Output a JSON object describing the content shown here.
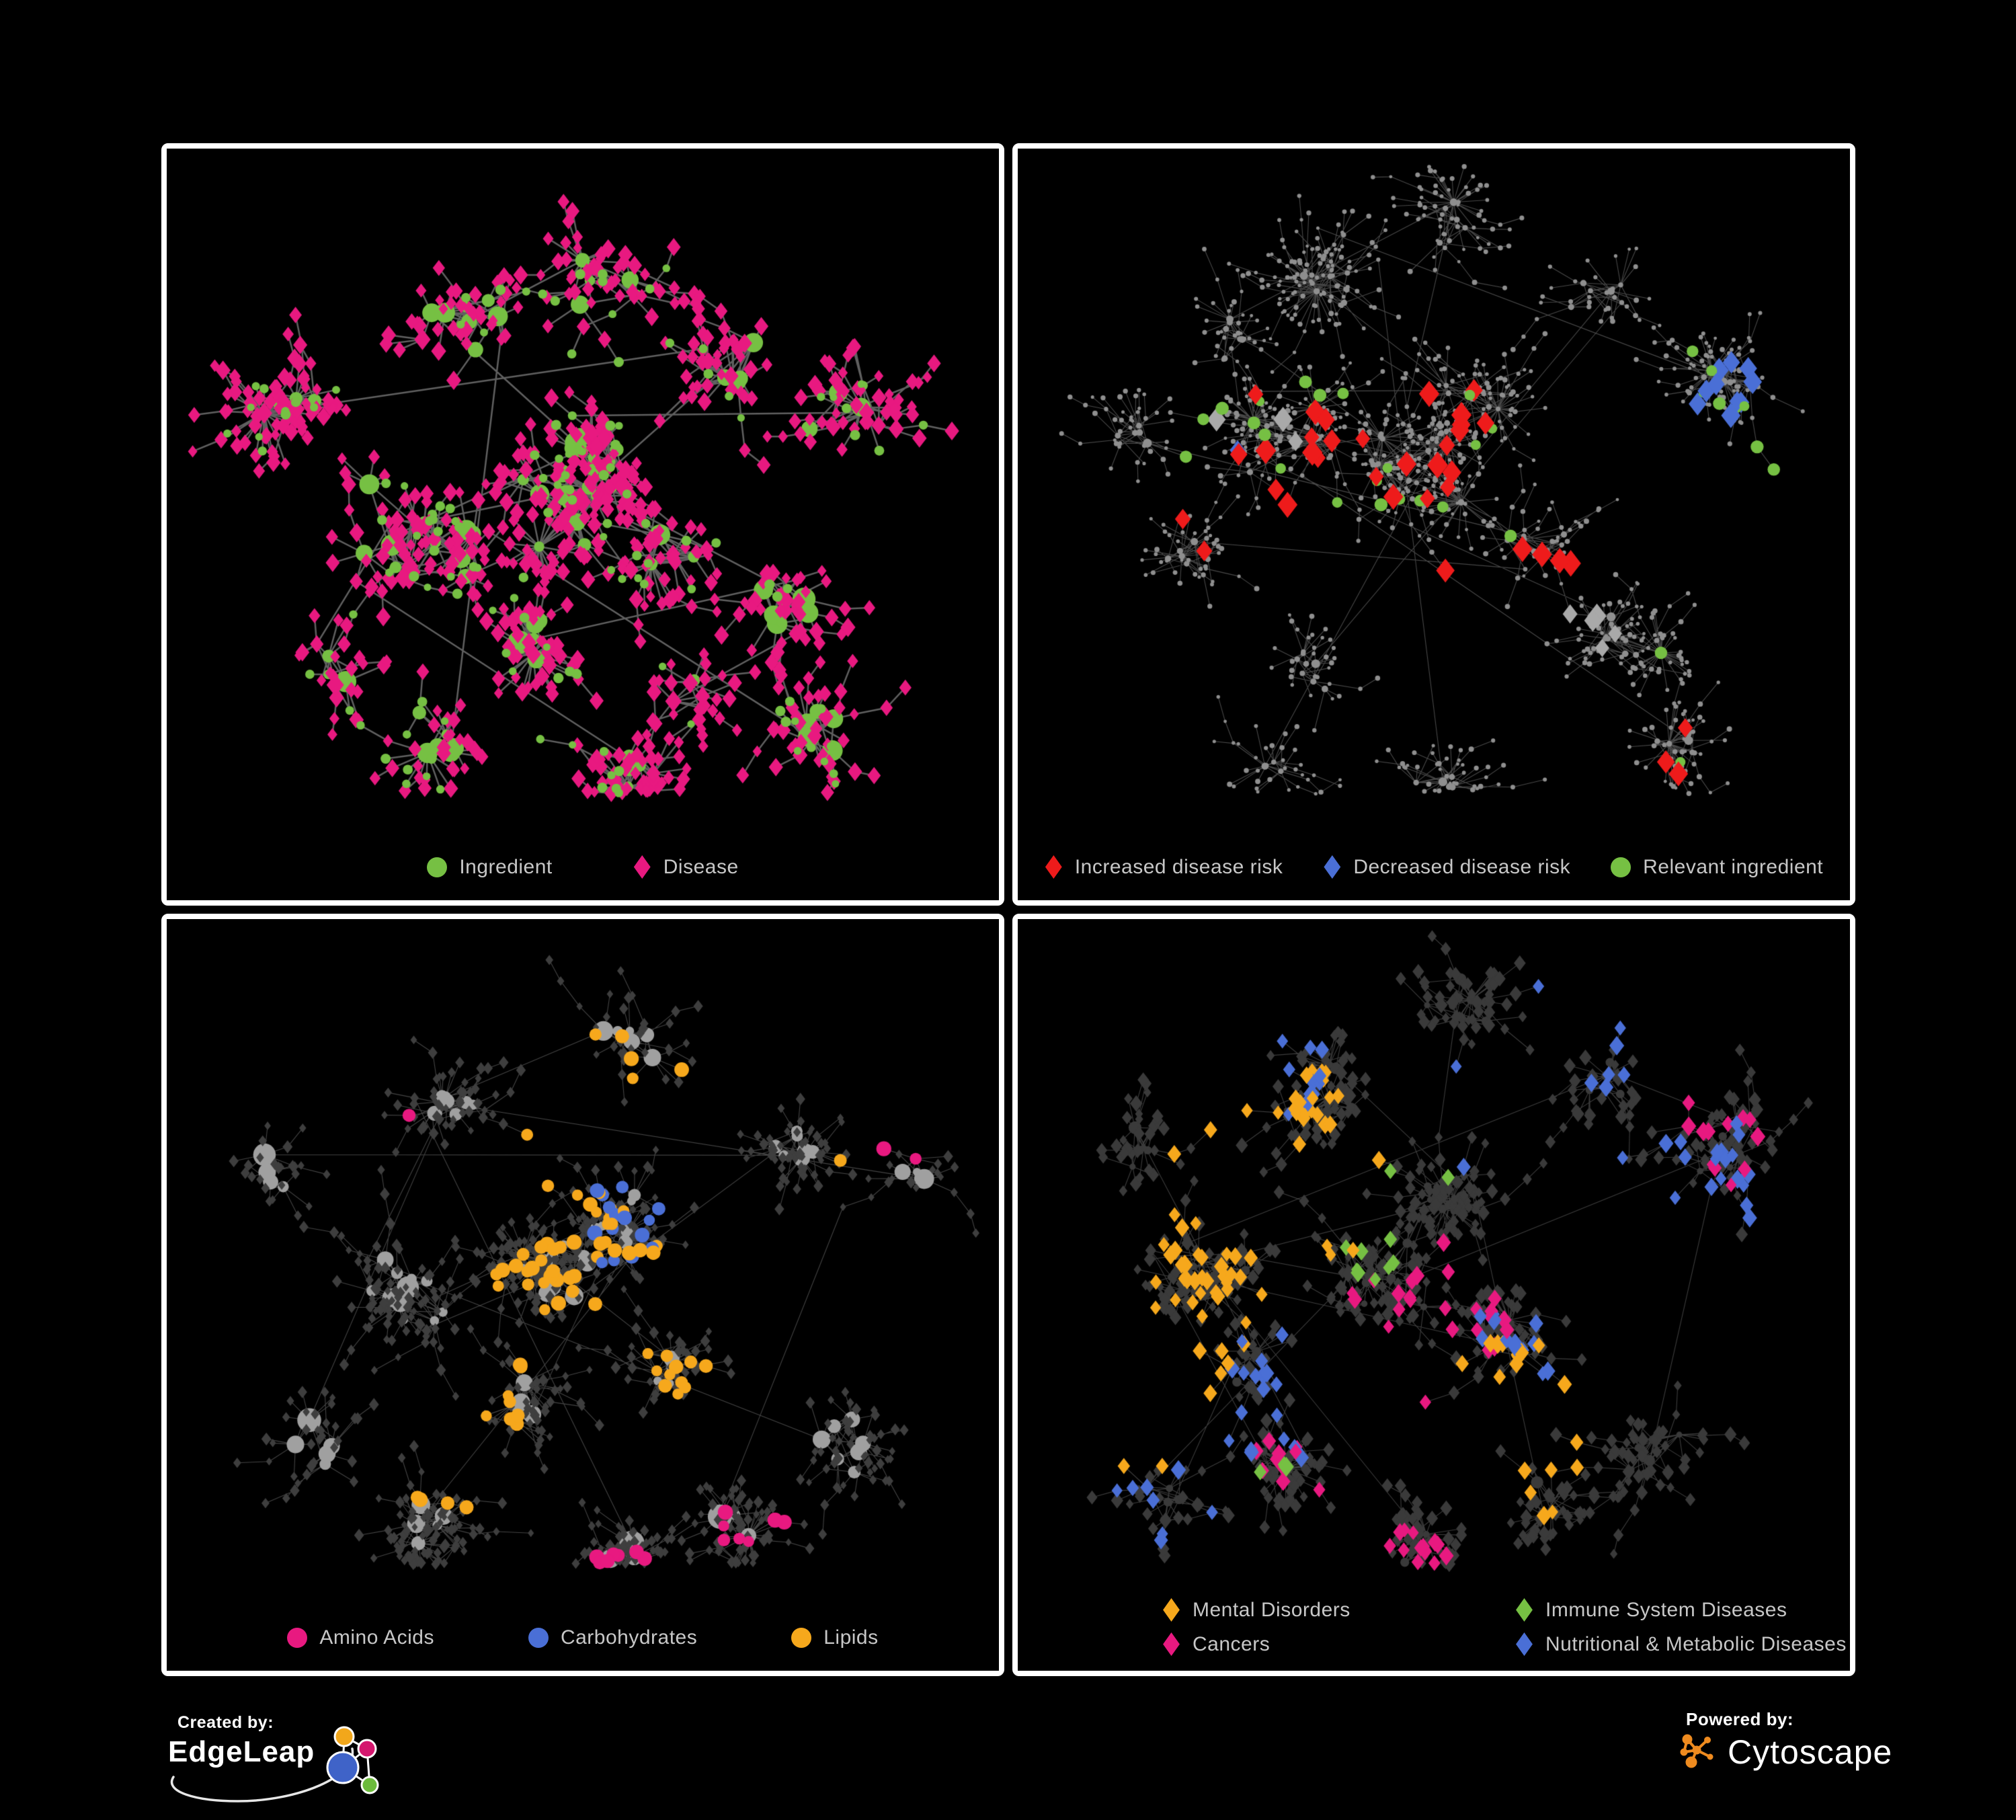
{
  "background": "#000000",
  "palette": {
    "green": "#76C043",
    "magenta": "#E81980",
    "red": "#EE1B1B",
    "blue": "#4A6FD6",
    "amber": "#F6A81C",
    "gray": "#A9A9A9",
    "dark_node": "#3A3A3A",
    "legend_text": "#C7C7C7",
    "panel_border": "#FFFFFF"
  },
  "panels": [
    {
      "name": "ingredient-disease-network",
      "legend": [
        {
          "label": "Ingredient",
          "shape": "circle",
          "color": "#76C043"
        },
        {
          "label": "Disease",
          "shape": "diamond",
          "color": "#E81980"
        }
      ],
      "network": {
        "seed": 7,
        "edge": {
          "color": "#6A6A6A",
          "width": 2.5,
          "alpha": 0.9
        },
        "hub": {
          "shape": "circle",
          "color": "#76C043",
          "sizeMin": 7,
          "sizeMax": 16
        },
        "leaf": {
          "shape": "diamond",
          "color": "#E81980",
          "size": 9
        },
        "leafMin": 2,
        "leafMax": 7,
        "flowerProb": 0.09,
        "chainProb": 0.18,
        "crossProb": 0.35,
        "leafDist": 1.0,
        "clusters": [
          [
            0.3,
            0.52,
            0.1,
            16
          ],
          [
            0.47,
            0.47,
            0.09,
            14
          ],
          [
            0.52,
            0.4,
            0.06,
            10
          ],
          [
            0.6,
            0.55,
            0.05,
            6
          ],
          [
            0.36,
            0.24,
            0.08,
            8
          ],
          [
            0.52,
            0.16,
            0.06,
            6
          ],
          [
            0.68,
            0.3,
            0.06,
            6
          ],
          [
            0.82,
            0.35,
            0.07,
            8
          ],
          [
            0.75,
            0.62,
            0.06,
            6
          ],
          [
            0.8,
            0.78,
            0.06,
            7
          ],
          [
            0.55,
            0.82,
            0.05,
            5
          ],
          [
            0.33,
            0.78,
            0.06,
            6
          ],
          [
            0.2,
            0.7,
            0.05,
            5
          ],
          [
            0.15,
            0.35,
            0.05,
            5
          ],
          [
            0.63,
            0.72,
            0.04,
            4
          ],
          [
            0.44,
            0.66,
            0.05,
            6
          ]
        ],
        "groups": [
          {
            "target": "leaf",
            "shape": "circle",
            "color": "#76C043",
            "size": 6.5,
            "count": 140,
            "centers": null,
            "spread": 1
          },
          {
            "target": "hub",
            "shape": "diamond",
            "color": "#E81980",
            "size": 11,
            "count": 26,
            "centers": null,
            "spread": 1
          }
        ]
      }
    },
    {
      "name": "disease-risk-network",
      "legend": [
        {
          "label": "Increased disease risk",
          "shape": "diamond",
          "color": "#EE1B1B"
        },
        {
          "label": "Decreased disease risk",
          "shape": "diamond",
          "color": "#4A6FD6"
        },
        {
          "label": "Relevant ingredient",
          "shape": "circle",
          "color": "#76C043"
        }
      ],
      "network": {
        "seed": 12,
        "edge": {
          "color": "#666666",
          "width": 1.1,
          "alpha": 0.7
        },
        "hub": {
          "shape": "circle",
          "color": "#8F8F8F",
          "sizeMin": 3.5,
          "sizeMax": 5
        },
        "leaf": {
          "shape": "circle",
          "color": "#8F8F8F",
          "size": 3.2
        },
        "leafMin": 2,
        "leafMax": 8,
        "flowerProb": 0.12,
        "chainProb": 0.2,
        "crossProb": 0.3,
        "leafDist": 1.0,
        "clusters": [
          [
            0.33,
            0.4,
            0.09,
            14
          ],
          [
            0.48,
            0.42,
            0.08,
            14
          ],
          [
            0.56,
            0.33,
            0.05,
            8
          ],
          [
            0.38,
            0.17,
            0.07,
            7
          ],
          [
            0.52,
            0.1,
            0.05,
            5
          ],
          [
            0.25,
            0.25,
            0.06,
            6
          ],
          [
            0.7,
            0.2,
            0.06,
            6
          ],
          [
            0.85,
            0.3,
            0.06,
            7
          ],
          [
            0.62,
            0.52,
            0.06,
            8
          ],
          [
            0.72,
            0.65,
            0.06,
            7
          ],
          [
            0.8,
            0.8,
            0.05,
            6
          ],
          [
            0.5,
            0.85,
            0.05,
            6
          ],
          [
            0.35,
            0.7,
            0.06,
            7
          ],
          [
            0.2,
            0.55,
            0.05,
            6
          ],
          [
            0.3,
            0.88,
            0.04,
            4
          ],
          [
            0.15,
            0.38,
            0.04,
            5
          ]
        ],
        "groups": [
          {
            "target": "any",
            "shape": "diamond",
            "color": "#EE1B1B",
            "size": 13,
            "count": 36,
            "centers": [
              [
                0.33,
                0.4
              ],
              [
                0.45,
                0.45
              ],
              [
                0.52,
                0.4
              ],
              [
                0.55,
                0.55
              ],
              [
                0.62,
                0.57
              ],
              [
                0.73,
                0.8
              ],
              [
                0.28,
                0.47
              ]
            ],
            "spread": 0.09
          },
          {
            "target": "any",
            "shape": "diamond",
            "color": "#4A6FD6",
            "size": 12,
            "count": 11,
            "centers": [
              [
                0.26,
                0.47
              ],
              [
                0.24,
                0.42
              ],
              [
                0.84,
                0.32
              ]
            ],
            "spread": 0.05
          },
          {
            "target": "any",
            "shape": "diamond",
            "color": "#A9A9A9",
            "size": 12,
            "count": 8,
            "centers": [
              [
                0.28,
                0.4
              ],
              [
                0.36,
                0.55
              ],
              [
                0.5,
                0.48
              ],
              [
                0.6,
                0.6
              ],
              [
                0.66,
                0.62
              ]
            ],
            "spread": 0.07
          },
          {
            "target": "any",
            "shape": "circle",
            "color": "#76C043",
            "size": 8.5,
            "count": 32,
            "centers": [
              [
                0.3,
                0.42
              ],
              [
                0.44,
                0.47
              ],
              [
                0.52,
                0.52
              ],
              [
                0.56,
                0.42
              ],
              [
                0.68,
                0.73
              ],
              [
                0.78,
                0.73
              ],
              [
                0.3,
                0.36
              ],
              [
                0.85,
                0.35
              ]
            ],
            "spread": 0.1
          }
        ]
      }
    },
    {
      "name": "nutrient-class-network",
      "legend": [
        {
          "label": "Amino Acids",
          "shape": "circle",
          "color": "#E81980"
        },
        {
          "label": "Carbohydrates",
          "shape": "circle",
          "color": "#4A6FD6"
        },
        {
          "label": "Lipids",
          "shape": "circle",
          "color": "#F6A81C"
        }
      ],
      "network": {
        "seed": 5,
        "edge": {
          "color": "#969696",
          "width": 1.1,
          "alpha": 0.45
        },
        "hub": {
          "shape": "circle",
          "color": "#A0A0A0",
          "sizeMin": 6,
          "sizeMax": 14
        },
        "leaf": {
          "shape": "diamond",
          "color": "#3E3E3E",
          "size": 6
        },
        "leafMin": 2,
        "leafMax": 8,
        "flowerProb": 0.11,
        "chainProb": 0.18,
        "crossProb": 0.5,
        "leafDist": 0.9,
        "clusters": [
          [
            0.28,
            0.5,
            0.08,
            14
          ],
          [
            0.47,
            0.47,
            0.08,
            16
          ],
          [
            0.53,
            0.4,
            0.05,
            10
          ],
          [
            0.6,
            0.6,
            0.05,
            8
          ],
          [
            0.35,
            0.25,
            0.08,
            8
          ],
          [
            0.55,
            0.15,
            0.06,
            6
          ],
          [
            0.75,
            0.3,
            0.06,
            7
          ],
          [
            0.88,
            0.33,
            0.04,
            4
          ],
          [
            0.8,
            0.7,
            0.06,
            7
          ],
          [
            0.55,
            0.85,
            0.05,
            5
          ],
          [
            0.33,
            0.8,
            0.06,
            6
          ],
          [
            0.18,
            0.7,
            0.05,
            5
          ],
          [
            0.13,
            0.33,
            0.04,
            4
          ],
          [
            0.68,
            0.8,
            0.04,
            4
          ],
          [
            0.42,
            0.65,
            0.05,
            6
          ]
        ],
        "groups": [
          {
            "target": "any",
            "shape": "circle",
            "color": "#F6A81C",
            "size": 9.5,
            "count": 72,
            "centers": [
              [
                0.53,
                0.39
              ],
              [
                0.49,
                0.27
              ],
              [
                0.45,
                0.52
              ],
              [
                0.62,
                0.6
              ],
              [
                0.7,
                0.6
              ],
              [
                0.35,
                0.7
              ],
              [
                0.55,
                0.15
              ],
              [
                0.85,
                0.4
              ]
            ],
            "spread": 0.09
          },
          {
            "target": "any",
            "shape": "circle",
            "color": "#4A6FD6",
            "size": 9.5,
            "count": 15,
            "centers": [
              [
                0.54,
                0.42
              ],
              [
                0.56,
                0.38
              ],
              [
                0.72,
                0.58
              ],
              [
                0.08,
                0.28
              ],
              [
                0.35,
                0.08
              ]
            ],
            "spread": 0.05
          },
          {
            "target": "any",
            "shape": "circle",
            "color": "#E81980",
            "size": 9.5,
            "count": 17,
            "centers": [
              [
                0.24,
                0.25
              ],
              [
                0.33,
                0.4
              ],
              [
                0.15,
                0.55
              ],
              [
                0.7,
                0.78
              ],
              [
                0.75,
                0.85
              ],
              [
                0.55,
                0.88
              ],
              [
                0.3,
                0.92
              ],
              [
                0.92,
                0.3
              ],
              [
                0.83,
                0.05
              ]
            ],
            "spread": 0.06
          }
        ]
      }
    },
    {
      "name": "disease-category-network",
      "legend": [
        {
          "label": "Mental Disorders",
          "shape": "diamond",
          "color": "#F6A81C"
        },
        {
          "label": "Immune System Diseases",
          "shape": "diamond",
          "color": "#76C043"
        },
        {
          "label": "Cancers",
          "shape": "diamond",
          "color": "#E81980"
        },
        {
          "label": "Nutritional & Metabolic Diseases",
          "shape": "diamond",
          "color": "#4A6FD6"
        }
      ],
      "network": {
        "seed": 9,
        "edge": {
          "color": "#7A7A7A",
          "width": 1.1,
          "alpha": 0.5
        },
        "hub": {
          "shape": "circle",
          "color": "#3A3A3A",
          "sizeMin": 4.5,
          "sizeMax": 7
        },
        "leaf": {
          "shape": "diamond",
          "color": "#3A3A3A",
          "size": 7.5
        },
        "leafMin": 2,
        "leafMax": 8,
        "flowerProb": 0.11,
        "chainProb": 0.18,
        "crossProb": 0.4,
        "leafDist": 0.9,
        "clusters": [
          [
            0.23,
            0.46,
            0.08,
            14
          ],
          [
            0.45,
            0.48,
            0.08,
            16
          ],
          [
            0.52,
            0.38,
            0.05,
            9
          ],
          [
            0.58,
            0.57,
            0.05,
            9
          ],
          [
            0.35,
            0.22,
            0.08,
            8
          ],
          [
            0.52,
            0.12,
            0.06,
            6
          ],
          [
            0.7,
            0.22,
            0.06,
            6
          ],
          [
            0.83,
            0.3,
            0.06,
            7
          ],
          [
            0.88,
            0.27,
            0.03,
            3
          ],
          [
            0.75,
            0.72,
            0.06,
            7
          ],
          [
            0.5,
            0.88,
            0.05,
            6
          ],
          [
            0.32,
            0.72,
            0.06,
            7
          ],
          [
            0.18,
            0.78,
            0.05,
            5
          ],
          [
            0.15,
            0.3,
            0.05,
            5
          ],
          [
            0.63,
            0.78,
            0.04,
            5
          ],
          [
            0.28,
            0.6,
            0.05,
            6
          ]
        ],
        "groups": [
          {
            "target": "any",
            "shape": "diamond",
            "color": "#F6A81C",
            "size": 9.5,
            "count": 90,
            "centers": [
              [
                0.22,
                0.46
              ],
              [
                0.33,
                0.35
              ],
              [
                0.14,
                0.62
              ],
              [
                0.3,
                0.3
              ],
              [
                0.6,
                0.68
              ]
            ],
            "spread": 0.12
          },
          {
            "target": "any",
            "shape": "diamond",
            "color": "#E81980",
            "size": 9.5,
            "count": 60,
            "centers": [
              [
                0.45,
                0.55
              ],
              [
                0.42,
                0.62
              ],
              [
                0.52,
                0.5
              ],
              [
                0.87,
                0.28
              ],
              [
                0.5,
                0.88
              ],
              [
                0.35,
                0.75
              ]
            ],
            "spread": 0.09
          },
          {
            "target": "any",
            "shape": "diamond",
            "color": "#4A6FD6",
            "size": 9.5,
            "count": 80,
            "centers": [
              [
                0.58,
                0.57
              ],
              [
                0.8,
                0.33
              ],
              [
                0.7,
                0.15
              ],
              [
                0.28,
                0.18
              ],
              [
                0.32,
                0.62
              ],
              [
                0.85,
                0.45
              ],
              [
                0.55,
                0.25
              ],
              [
                0.2,
                0.8
              ]
            ],
            "spread": 0.1
          },
          {
            "target": "any",
            "shape": "diamond",
            "color": "#76C043",
            "size": 9.5,
            "count": 13,
            "centers": [
              [
                0.42,
                0.46
              ],
              [
                0.33,
                0.7
              ],
              [
                0.72,
                0.82
              ],
              [
                0.48,
                0.3
              ]
            ],
            "spread": 0.06
          }
        ]
      }
    }
  ],
  "branding": {
    "created_by": {
      "label": "Created by:",
      "brand": "EdgeLeap",
      "colors": [
        "#F2A71B",
        "#D4176E",
        "#3F63C8",
        "#6CBB3C"
      ]
    },
    "powered_by": {
      "label": "Powered by:",
      "brand": "Cytoscape",
      "color": "#EF8B1F"
    }
  }
}
